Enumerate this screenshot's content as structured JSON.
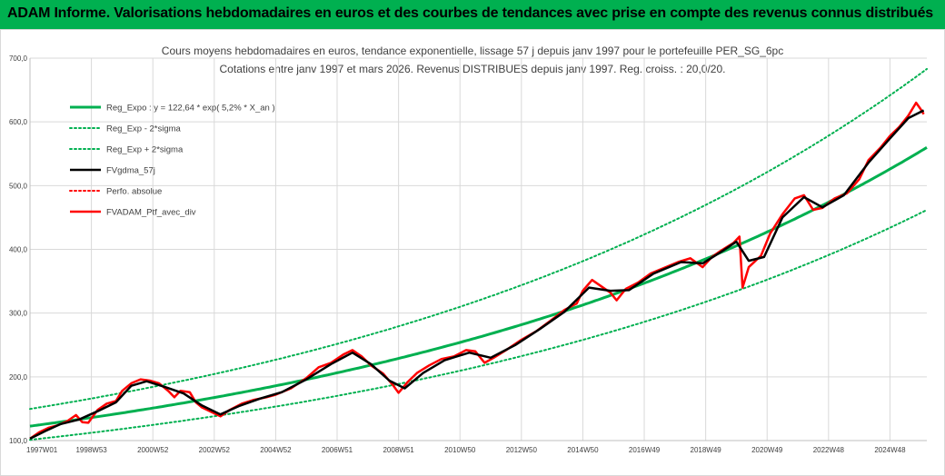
{
  "header": {
    "title": "ADAM Informe. Valorisations hebdomadaires en euros et des courbes de tendances avec prise en compte des revenus connus distribués",
    "bg_color": "#00b050"
  },
  "chart_data": {
    "type": "line",
    "title_line1": "Cours moyens hebdomadaires  en euros, tendance exponentielle, lissage 57 j depuis janv 1997 pour le portefeuille PER_SG_6pc",
    "title_line2": "Cotations  entre janv 1997 et mars 2026. Revenus DISTRIBUES depuis janv 1997. Reg. croiss. : 20,0/20.",
    "xlabel": "",
    "ylabel": "",
    "xlim": [
      1997.0,
      2026.2
    ],
    "ylim": [
      100,
      700
    ],
    "y_ticks": [
      "100,0",
      "200,0",
      "300,0",
      "400,0",
      "500,0",
      "600,0",
      "700,0"
    ],
    "x_ticks": [
      {
        "label": "1997W01",
        "t": 1997.0
      },
      {
        "label": "1998W53",
        "t": 1999.0
      },
      {
        "label": "2000W52",
        "t": 2001.0
      },
      {
        "label": "2002W52",
        "t": 2003.0
      },
      {
        "label": "2004W52",
        "t": 2005.0
      },
      {
        "label": "2006W51",
        "t": 2007.0
      },
      {
        "label": "2008W51",
        "t": 2009.0
      },
      {
        "label": "2010W50",
        "t": 2011.0
      },
      {
        "label": "2012W50",
        "t": 2013.0
      },
      {
        "label": "2014W50",
        "t": 2015.0
      },
      {
        "label": "2016W49",
        "t": 2017.0
      },
      {
        "label": "2018W49",
        "t": 2019.0
      },
      {
        "label": "2020W49",
        "t": 2021.0
      },
      {
        "label": "2022W48",
        "t": 2023.0
      },
      {
        "label": "2024W48",
        "t": 2025.0
      }
    ],
    "grid": true,
    "legend_position": "top-left",
    "legend": [
      {
        "name": "Reg_Expo : y = 122,64 * exp( 5,2% *  X_an )",
        "color": "#00b050",
        "dash": "solid",
        "width": 3
      },
      {
        "name": "Reg_Exp - 2*sigma",
        "color": "#00b050",
        "dash": "dotted",
        "width": 2
      },
      {
        "name": "Reg_Exp + 2*sigma",
        "color": "#00b050",
        "dash": "dotted",
        "width": 2
      },
      {
        "name": "FVgdma_57j",
        "color": "#000000",
        "dash": "solid",
        "width": 2.5
      },
      {
        "name": "Perfo. absolue",
        "color": "#ff0000",
        "dash": "dotted",
        "width": 2
      },
      {
        "name": "FVADAM_Ptf_avec_div",
        "color": "#ff0000",
        "dash": "solid",
        "width": 2.5
      }
    ],
    "regression": {
      "a": 122.64,
      "rate": 0.052,
      "t0": 1997.0,
      "lower_factor": 0.825,
      "upper_factor": 1.22
    },
    "series": [
      {
        "name": "FVADAM_Ptf_avec_div",
        "points": [
          [
            1997.0,
            103
          ],
          [
            1997.3,
            113
          ],
          [
            1997.6,
            120
          ],
          [
            1997.9,
            124
          ],
          [
            1998.2,
            130
          ],
          [
            1998.5,
            140
          ],
          [
            1998.7,
            129
          ],
          [
            1998.9,
            128
          ],
          [
            1999.2,
            148
          ],
          [
            1999.5,
            158
          ],
          [
            1999.8,
            162
          ],
          [
            2000.0,
            178
          ],
          [
            2000.3,
            190
          ],
          [
            2000.6,
            196
          ],
          [
            2000.9,
            194
          ],
          [
            2001.2,
            190
          ],
          [
            2001.5,
            178
          ],
          [
            2001.7,
            168
          ],
          [
            2001.9,
            178
          ],
          [
            2002.2,
            176
          ],
          [
            2002.4,
            160
          ],
          [
            2002.6,
            152
          ],
          [
            2002.9,
            145
          ],
          [
            2003.2,
            138
          ],
          [
            2003.5,
            148
          ],
          [
            2003.9,
            158
          ],
          [
            2004.3,
            164
          ],
          [
            2004.7,
            168
          ],
          [
            2005.0,
            172
          ],
          [
            2005.5,
            182
          ],
          [
            2006.0,
            198
          ],
          [
            2006.4,
            215
          ],
          [
            2006.8,
            222
          ],
          [
            2007.2,
            235
          ],
          [
            2007.5,
            242
          ],
          [
            2007.8,
            232
          ],
          [
            2008.1,
            218
          ],
          [
            2008.5,
            205
          ],
          [
            2008.8,
            188
          ],
          [
            2009.0,
            175
          ],
          [
            2009.3,
            192
          ],
          [
            2009.6,
            206
          ],
          [
            2010.0,
            218
          ],
          [
            2010.4,
            228
          ],
          [
            2010.8,
            232
          ],
          [
            2011.2,
            242
          ],
          [
            2011.5,
            240
          ],
          [
            2011.8,
            222
          ],
          [
            2012.1,
            230
          ],
          [
            2012.5,
            242
          ],
          [
            2013.0,
            258
          ],
          [
            2013.5,
            272
          ],
          [
            2014.0,
            290
          ],
          [
            2014.4,
            305
          ],
          [
            2014.8,
            315
          ],
          [
            2015.0,
            335
          ],
          [
            2015.3,
            352
          ],
          [
            2015.6,
            342
          ],
          [
            2015.9,
            332
          ],
          [
            2016.1,
            320
          ],
          [
            2016.4,
            338
          ],
          [
            2016.8,
            348
          ],
          [
            2017.2,
            362
          ],
          [
            2017.7,
            372
          ],
          [
            2018.1,
            380
          ],
          [
            2018.5,
            386
          ],
          [
            2018.9,
            372
          ],
          [
            2019.2,
            388
          ],
          [
            2019.5,
            398
          ],
          [
            2019.9,
            410
          ],
          [
            2020.1,
            420
          ],
          [
            2020.2,
            340
          ],
          [
            2020.4,
            372
          ],
          [
            2020.8,
            390
          ],
          [
            2021.1,
            425
          ],
          [
            2021.5,
            455
          ],
          [
            2021.9,
            480
          ],
          [
            2022.2,
            485
          ],
          [
            2022.5,
            462
          ],
          [
            2022.8,
            465
          ],
          [
            2023.2,
            480
          ],
          [
            2023.6,
            488
          ],
          [
            2024.0,
            510
          ],
          [
            2024.3,
            540
          ],
          [
            2024.7,
            560
          ],
          [
            2025.0,
            578
          ],
          [
            2025.3,
            592
          ],
          [
            2025.6,
            610
          ],
          [
            2025.85,
            630
          ],
          [
            2026.0,
            620
          ],
          [
            2026.1,
            612
          ]
        ]
      },
      {
        "name": "FVgdma_57j",
        "points": [
          [
            1997.0,
            103
          ],
          [
            1997.5,
            115
          ],
          [
            1998.0,
            126
          ],
          [
            1998.6,
            133
          ],
          [
            1999.2,
            146
          ],
          [
            1999.8,
            160
          ],
          [
            2000.3,
            186
          ],
          [
            2000.8,
            193
          ],
          [
            2001.4,
            184
          ],
          [
            2002.0,
            174
          ],
          [
            2002.6,
            155
          ],
          [
            2003.2,
            141
          ],
          [
            2003.8,
            154
          ],
          [
            2004.5,
            166
          ],
          [
            2005.2,
            176
          ],
          [
            2006.0,
            196
          ],
          [
            2006.8,
            220
          ],
          [
            2007.5,
            238
          ],
          [
            2008.1,
            220
          ],
          [
            2008.7,
            194
          ],
          [
            2009.2,
            182
          ],
          [
            2009.8,
            206
          ],
          [
            2010.5,
            226
          ],
          [
            2011.3,
            238
          ],
          [
            2012.0,
            230
          ],
          [
            2012.8,
            250
          ],
          [
            2013.6,
            275
          ],
          [
            2014.4,
            302
          ],
          [
            2015.2,
            340
          ],
          [
            2015.9,
            335
          ],
          [
            2016.5,
            336
          ],
          [
            2017.3,
            362
          ],
          [
            2018.2,
            380
          ],
          [
            2018.9,
            378
          ],
          [
            2019.5,
            396
          ],
          [
            2020.0,
            412
          ],
          [
            2020.4,
            382
          ],
          [
            2020.9,
            388
          ],
          [
            2021.5,
            450
          ],
          [
            2022.2,
            482
          ],
          [
            2022.8,
            466
          ],
          [
            2023.5,
            485
          ],
          [
            2024.3,
            536
          ],
          [
            2025.0,
            574
          ],
          [
            2025.6,
            606
          ],
          [
            2026.1,
            618
          ]
        ]
      }
    ]
  }
}
